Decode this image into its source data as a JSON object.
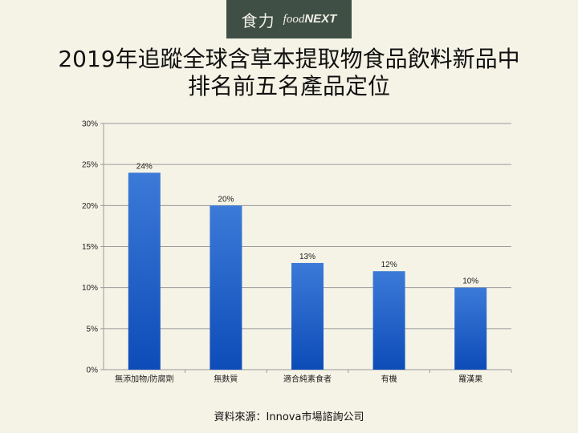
{
  "logo": {
    "chinese": "食力",
    "english_prefix": "food",
    "english_suffix": "NEXT"
  },
  "title": {
    "line1": "2019年追蹤全球含草本提取物食品飲料新品中",
    "line2": "排名前五名產品定位"
  },
  "source": "資料來源：Innova市場諮詢公司",
  "colors": {
    "bar_top": "#3c7ad8",
    "bar_bottom": "#0d4cb8",
    "grid": "#9a9a9a",
    "background": "#f5f3e6",
    "logo_bg": "#3f4f45"
  },
  "chart_data": {
    "type": "bar",
    "categories": [
      "無添加物/防腐劑",
      "無麩質",
      "適合純素食者",
      "有機",
      "羅漢果"
    ],
    "values": [
      24,
      20,
      13,
      12,
      10
    ],
    "value_labels": [
      "24%",
      "20%",
      "13%",
      "12%",
      "10%"
    ],
    "title": "",
    "xlabel": "",
    "ylabel": "",
    "ylim": [
      0,
      30
    ],
    "yticks": [
      0,
      5,
      10,
      15,
      20,
      25,
      30
    ],
    "ytick_labels": [
      "0%",
      "5%",
      "10%",
      "15%",
      "20%",
      "25%",
      "30%"
    ],
    "grid": true,
    "legend": false
  }
}
